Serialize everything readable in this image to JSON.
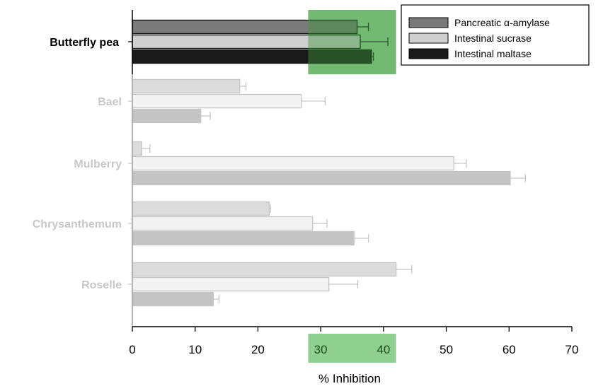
{
  "chart_data": {
    "type": "bar",
    "orientation": "horizontal",
    "title": "",
    "xlabel": "% Inhibition",
    "ylabel": "",
    "xlim": [
      0,
      70
    ],
    "xticks": [
      0,
      10,
      20,
      30,
      40,
      50,
      60,
      70
    ],
    "grid": false,
    "legend_position": "top-right",
    "categories": [
      "Butterfly pea",
      "Bael",
      "Mulberry",
      "Chrysanthemum",
      "Roselle"
    ],
    "highlighted_category": "Butterfly pea",
    "highlight_range": [
      28,
      42
    ],
    "series": [
      {
        "name": "Pancreatic α-amylase",
        "color": "#7a7a7a",
        "muted_color": "#dcdcdc",
        "values": [
          35.8,
          17.1,
          1.5,
          21.8,
          42.0
        ],
        "errors": [
          1.8,
          1.0,
          1.3,
          0.2,
          2.5
        ]
      },
      {
        "name": "Intestinal sucrase",
        "color": "#cfcfcf",
        "muted_color": "#f2f2f2",
        "values": [
          36.3,
          26.9,
          51.2,
          28.7,
          31.3
        ],
        "errors": [
          4.4,
          3.8,
          2.0,
          2.3,
          4.6
        ]
      },
      {
        "name": "Intestinal maltase",
        "color": "#1a1a1a",
        "muted_color": "#c4c4c4",
        "values": [
          38.1,
          10.9,
          60.2,
          35.3,
          12.9
        ],
        "errors": [
          0.3,
          1.5,
          2.4,
          2.3,
          0.9
        ]
      }
    ],
    "colors": {
      "highlight": "#8fcf8f",
      "muted_text": "#c8c8c8",
      "active_text": "#000000"
    }
  }
}
